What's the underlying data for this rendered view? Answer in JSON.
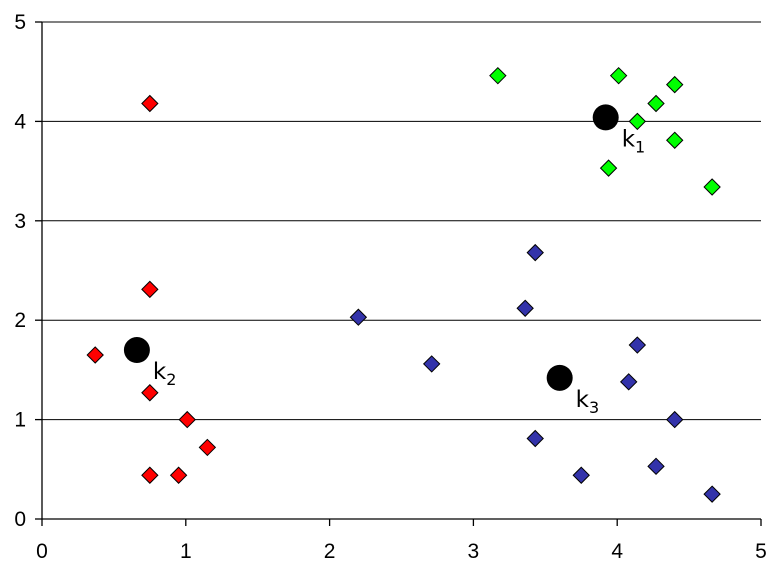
{
  "chart_data": {
    "type": "scatter",
    "title": "",
    "xlabel": "",
    "ylabel": "",
    "xlim": [
      0,
      5
    ],
    "ylim": [
      0,
      5
    ],
    "x_ticks": [
      "0",
      "1",
      "2",
      "3",
      "4",
      "5"
    ],
    "y_ticks": [
      "0",
      "1",
      "2",
      "3",
      "4",
      "5"
    ],
    "grid": "horizontal",
    "legend": "none",
    "series": [
      {
        "color": "#ff0000",
        "marker": "diamond",
        "points": [
          [
            0.75,
            4.18
          ],
          [
            0.75,
            2.31
          ],
          [
            0.37,
            1.65
          ],
          [
            0.75,
            1.27
          ],
          [
            1.01,
            1.0
          ],
          [
            1.15,
            0.72
          ],
          [
            0.75,
            0.44
          ],
          [
            0.95,
            0.44
          ]
        ]
      },
      {
        "color": "#00ff00",
        "marker": "diamond",
        "points": [
          [
            3.17,
            4.46
          ],
          [
            4.01,
            4.46
          ],
          [
            4.4,
            4.37
          ],
          [
            4.27,
            4.18
          ],
          [
            4.14,
            4.0
          ],
          [
            4.4,
            3.81
          ],
          [
            3.94,
            3.53
          ],
          [
            4.66,
            3.34
          ]
        ]
      },
      {
        "color": "#3333aa",
        "marker": "diamond",
        "points": [
          [
            3.43,
            2.68
          ],
          [
            3.36,
            2.12
          ],
          [
            2.2,
            2.03
          ],
          [
            4.14,
            1.75
          ],
          [
            2.71,
            1.56
          ],
          [
            4.08,
            1.38
          ],
          [
            4.4,
            1.0
          ],
          [
            3.43,
            0.81
          ],
          [
            4.27,
            0.53
          ],
          [
            3.75,
            0.44
          ],
          [
            4.66,
            0.25
          ]
        ]
      }
    ],
    "centroids": [
      {
        "label": "k",
        "sub": "1",
        "x": 3.92,
        "y": 4.04,
        "color": "#000000"
      },
      {
        "label": "k",
        "sub": "2",
        "x": 0.66,
        "y": 1.7,
        "color": "#000000"
      },
      {
        "label": "k",
        "sub": "3",
        "x": 3.6,
        "y": 1.42,
        "color": "#000000"
      }
    ]
  }
}
